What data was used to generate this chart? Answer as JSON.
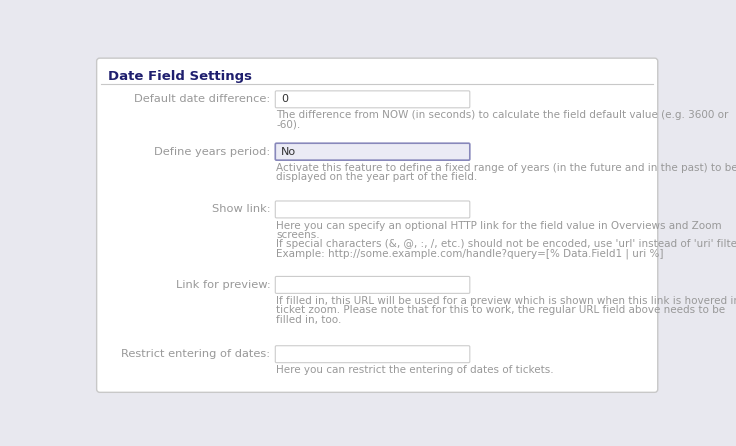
{
  "title": "Date Field Settings",
  "title_color": "#1f1f6e",
  "bg_color": "#e8e8ef",
  "panel_color": "#ffffff",
  "border_color": "#c8c8c8",
  "label_color": "#999999",
  "desc_color": "#999999",
  "input_bg": "#ffffff",
  "input_border": "#cccccc",
  "input_text_color": "#333333",
  "selected_bg": "#ebebf5",
  "selected_border": "#8888bb",
  "rows": [
    {
      "label": "Default date difference:",
      "input_value": "0",
      "input_selected": false,
      "descriptions": [
        "The difference from NOW (in seconds) to calculate the field default value (e.g. 3600 or",
        "-60)."
      ]
    },
    {
      "label": "Define years period:",
      "input_value": "No",
      "input_selected": true,
      "descriptions": [
        "Activate this feature to define a fixed range of years (in the future and in the past) to be",
        "displayed on the year part of the field."
      ]
    },
    {
      "label": "Show link:",
      "input_value": "",
      "input_selected": false,
      "descriptions": [
        "Here you can specify an optional HTTP link for the field value in Overviews and Zoom",
        "screens.",
        "If special characters (&, @, :, /, etc.) should not be encoded, use 'url' instead of 'uri' filter.",
        "Example: http://some.example.com/handle?query=[% Data.Field1 | uri %]"
      ]
    },
    {
      "label": "Link for preview:",
      "input_value": "",
      "input_selected": false,
      "descriptions": [
        "If filled in, this URL will be used for a preview which is shown when this link is hovered in",
        "ticket zoom. Please note that for this to work, the regular URL field above needs to be",
        "filled in, too."
      ]
    },
    {
      "label": "Restrict entering of dates:",
      "input_value": "",
      "input_selected": false,
      "descriptions": [
        "Here you can restrict the entering of dates of tickets."
      ]
    }
  ]
}
